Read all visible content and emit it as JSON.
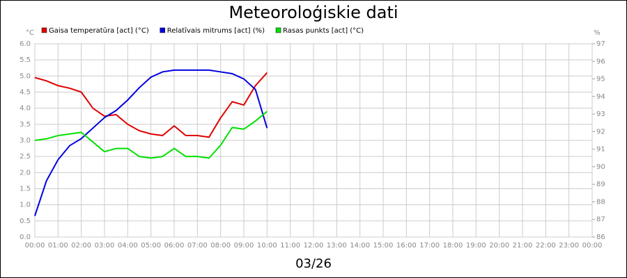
{
  "chart_data": {
    "type": "line",
    "title": "Meteoroloģiskie dati",
    "xlabel": "03/26",
    "ylabel": "°C",
    "y2label": "%",
    "grid": true,
    "x": [
      0,
      0.5,
      1,
      1.5,
      2,
      2.5,
      3,
      3.5,
      4,
      4.5,
      5,
      5.5,
      6,
      6.5,
      7,
      7.5,
      8,
      8.5,
      9,
      9.5,
      10
    ],
    "xlim": [
      0,
      24
    ],
    "xticks": [
      {
        "value": 0,
        "label": "00:00"
      },
      {
        "value": 1,
        "label": "01:00"
      },
      {
        "value": 2,
        "label": "02:00"
      },
      {
        "value": 3,
        "label": "03:00"
      },
      {
        "value": 4,
        "label": "04:00"
      },
      {
        "value": 5,
        "label": "05:00"
      },
      {
        "value": 6,
        "label": "06:00"
      },
      {
        "value": 7,
        "label": "07:00"
      },
      {
        "value": 8,
        "label": "08:00"
      },
      {
        "value": 9,
        "label": "09:00"
      },
      {
        "value": 10,
        "label": "10:00"
      },
      {
        "value": 11,
        "label": "11:00"
      },
      {
        "value": 12,
        "label": "12:00"
      },
      {
        "value": 13,
        "label": "13:00"
      },
      {
        "value": 14,
        "label": "14:00"
      },
      {
        "value": 15,
        "label": "15:00"
      },
      {
        "value": 16,
        "label": "16:00"
      },
      {
        "value": 17,
        "label": "17:00"
      },
      {
        "value": 18,
        "label": "18:00"
      },
      {
        "value": 19,
        "label": "19:00"
      },
      {
        "value": 20,
        "label": "20:00"
      },
      {
        "value": 21,
        "label": "21:00"
      },
      {
        "value": 22,
        "label": "22:00"
      },
      {
        "value": 23,
        "label": "23:00"
      },
      {
        "value": 24,
        "label": "00:00"
      }
    ],
    "ylim": [
      0,
      6
    ],
    "yticks": [
      {
        "value": 0,
        "label": "0.0"
      },
      0.5,
      {
        "value": 1,
        "label": "1.0"
      },
      1.5,
      {
        "value": 2,
        "label": "2.0"
      },
      2.5,
      {
        "value": 3,
        "label": "3.0"
      },
      3.5,
      {
        "value": 4,
        "label": "4.0"
      },
      4.5,
      {
        "value": 5,
        "label": "5.0"
      },
      5.5,
      {
        "value": 6,
        "label": "6.0"
      }
    ],
    "y2lim": [
      86,
      97
    ],
    "y2ticks": [
      86,
      87,
      88,
      89,
      90,
      91,
      92,
      93,
      94,
      95,
      96,
      97
    ],
    "series": [
      {
        "name": "Gaisa temperatūra [act] (°C)",
        "color": "#e00000",
        "values": [
          4.95,
          4.85,
          4.7,
          4.62,
          4.5,
          4.0,
          3.75,
          3.8,
          3.5,
          3.3,
          3.2,
          3.15,
          3.45,
          3.15,
          3.15,
          3.1,
          3.7,
          4.2,
          4.1,
          4.7,
          5.1
        ]
      },
      {
        "name": "Relatīvais mitrums [act] (%)",
        "color": "#0000e0",
        "axis": "y2",
        "values": [
          87.2,
          89.2,
          90.4,
          91.2,
          91.6,
          92.2,
          92.8,
          93.2,
          93.8,
          94.5,
          95.1,
          95.4,
          95.5,
          95.5,
          95.5,
          95.5,
          95.4,
          95.3,
          95.0,
          94.4,
          92.2
        ]
      },
      {
        "name": "Rasas punkts [act] (°C)",
        "color": "#00e000",
        "values": [
          3.0,
          3.05,
          3.15,
          3.2,
          3.25,
          2.95,
          2.65,
          2.75,
          2.75,
          2.5,
          2.45,
          2.5,
          2.75,
          2.5,
          2.5,
          2.45,
          2.85,
          3.4,
          3.35,
          3.6,
          3.9
        ]
      }
    ]
  }
}
